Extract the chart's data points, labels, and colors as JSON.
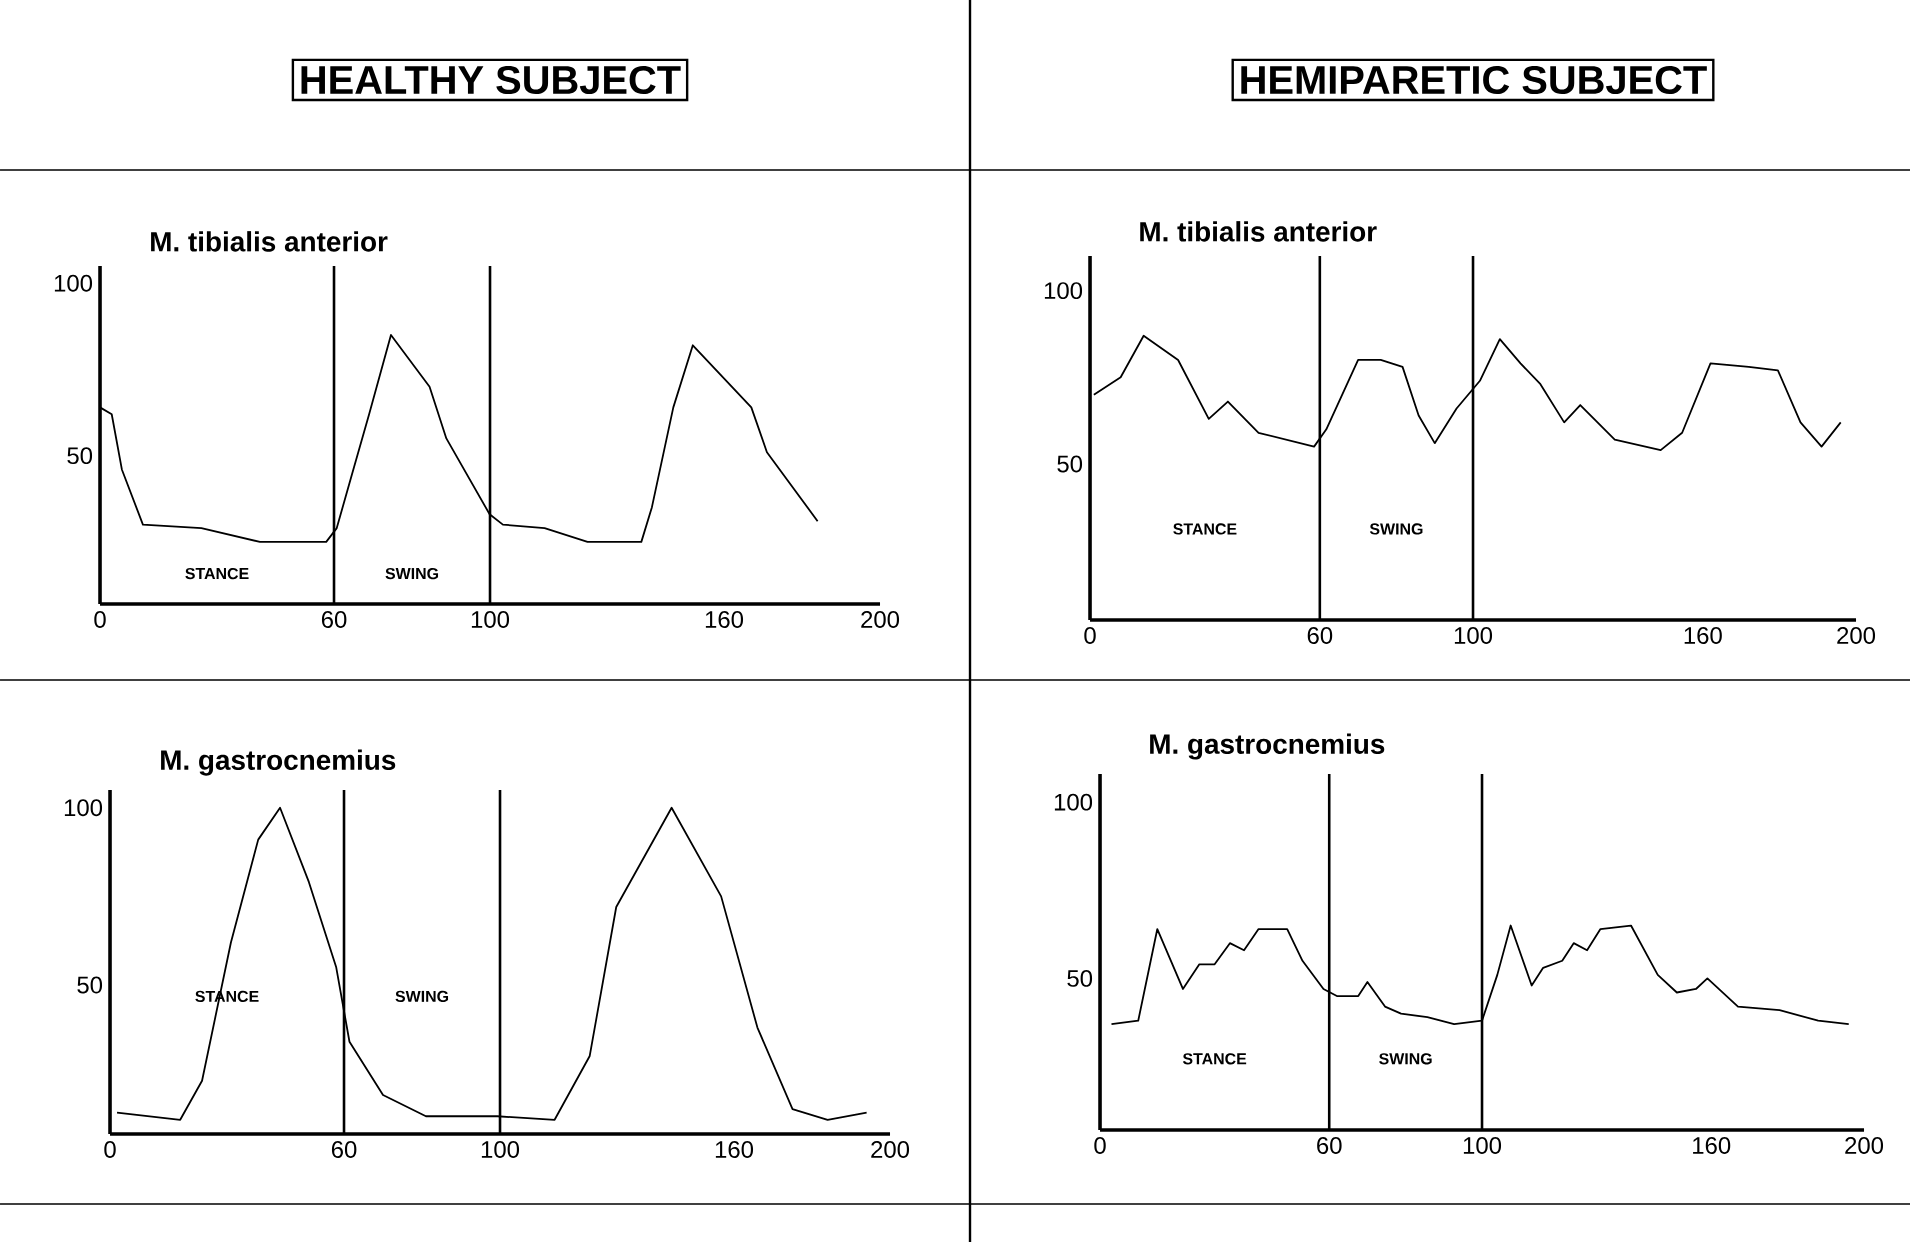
{
  "chart_data": [
    {
      "type": "line",
      "title": "HEALTHY SUBJECT",
      "subtitle": "M. tibialis anterior",
      "line_style": "solid",
      "xlim": [
        0,
        200
      ],
      "ylim": [
        7,
        105
      ],
      "xticks": [
        0,
        60,
        100,
        160,
        200
      ],
      "yticks": [
        50,
        100
      ],
      "x": [
        0,
        3,
        5.6,
        11,
        26,
        41,
        58,
        60.7,
        64.7,
        69,
        74.6,
        84.5,
        88.8,
        99.9,
        103.3,
        114,
        125,
        138.8,
        141.5,
        147,
        152,
        167,
        171,
        184
      ],
      "series": [
        {
          "color": "#000000",
          "values": [
            64,
            62,
            46,
            30,
            29,
            25,
            25,
            29,
            45,
            62,
            85,
            70,
            55,
            33,
            30,
            29,
            25,
            25,
            35,
            64,
            82,
            64,
            51,
            31
          ]
        }
      ],
      "ref_lines": [
        {
          "axis": "x",
          "value": 60,
          "color": "#000000"
        },
        {
          "axis": "x",
          "value": 100,
          "color": "#000000"
        }
      ],
      "annotations": [
        "STANCE",
        "SWING"
      ]
    },
    {
      "type": "line",
      "title": "HEMIPARETIC SUBJECT",
      "subtitle": "M. tibialis anterior",
      "line_style": "solid",
      "xlim": [
        0,
        200
      ],
      "ylim": [
        5,
        110
      ],
      "xticks": [
        0,
        60,
        100,
        160,
        200
      ],
      "yticks": [
        50,
        100
      ],
      "x": [
        1,
        8,
        14,
        23,
        31,
        36,
        44,
        58.5,
        61.7,
        70,
        75.9,
        81.6,
        85.8,
        90,
        95.7,
        101.8,
        107,
        112.4,
        117.6,
        123.8,
        128,
        137,
        149,
        154.6,
        162,
        172,
        179.6,
        185.5,
        191,
        196
      ],
      "series": [
        {
          "color": "#000000",
          "values": [
            70,
            75,
            87,
            80,
            63,
            68,
            59,
            55,
            60,
            80,
            80,
            78,
            64,
            56,
            66,
            74,
            86,
            79,
            73,
            62,
            67,
            57,
            54,
            59,
            79,
            78,
            77,
            62,
            55,
            62
          ]
        }
      ],
      "ref_lines": [
        {
          "axis": "x",
          "value": 60,
          "color": "#000000"
        },
        {
          "axis": "x",
          "value": 100,
          "color": "#000000"
        }
      ],
      "annotations": [
        "STANCE",
        "SWING"
      ]
    },
    {
      "type": "line",
      "title": "M. gastrocnemius",
      "line_style": "solid",
      "xlim": [
        0,
        200
      ],
      "ylim": [
        8,
        105
      ],
      "xticks": [
        0,
        60,
        100,
        160,
        200
      ],
      "yticks": [
        50,
        100
      ],
      "x": [
        1.8,
        18,
        23.6,
        31,
        38,
        43.6,
        51,
        58,
        61.4,
        70,
        81,
        99.3,
        114,
        123,
        129.8,
        144,
        156.7,
        166,
        175,
        184,
        194
      ],
      "series": [
        {
          "color": "#000000",
          "values": [
            14,
            12,
            23,
            62,
            91,
            100,
            79,
            55,
            34,
            19,
            13,
            13,
            12,
            30,
            72,
            100,
            75,
            38,
            15,
            12,
            14
          ]
        }
      ],
      "ref_lines": [
        {
          "axis": "x",
          "value": 60,
          "color": "#000000"
        },
        {
          "axis": "x",
          "value": 100,
          "color": "#000000"
        }
      ],
      "annotations": [
        "STANCE",
        "SWING"
      ]
    },
    {
      "type": "line",
      "title": "M. gastrocnemius",
      "line_style": "solid",
      "xlim": [
        0,
        200
      ],
      "ylim": [
        7,
        108
      ],
      "xticks": [
        0,
        60,
        100,
        160,
        200
      ],
      "yticks": [
        50,
        100
      ],
      "x": [
        3,
        10,
        15,
        21.7,
        26,
        30,
        34,
        37.7,
        41.5,
        49,
        53,
        58.5,
        62,
        67.6,
        70,
        74.6,
        78.8,
        85.7,
        92.7,
        100,
        104,
        107.5,
        113,
        116,
        121,
        124,
        127.5,
        131,
        139,
        146,
        151,
        156,
        159,
        167,
        177.9,
        188,
        196
      ],
      "series": [
        {
          "color": "#000000",
          "values": [
            37,
            38,
            64,
            47,
            54,
            54,
            60,
            58,
            64,
            64,
            55,
            47,
            45,
            45,
            49,
            42,
            40,
            39,
            37,
            38,
            51,
            65,
            48,
            53,
            55,
            60,
            58,
            64,
            65,
            51,
            46,
            47,
            50,
            42,
            41,
            38,
            37
          ]
        }
      ],
      "ref_lines": [
        {
          "axis": "x",
          "value": 60,
          "color": "#000000"
        },
        {
          "axis": "x",
          "value": 100,
          "color": "#000000"
        }
      ],
      "annotations": [
        "STANCE",
        "SWING"
      ]
    }
  ]
}
